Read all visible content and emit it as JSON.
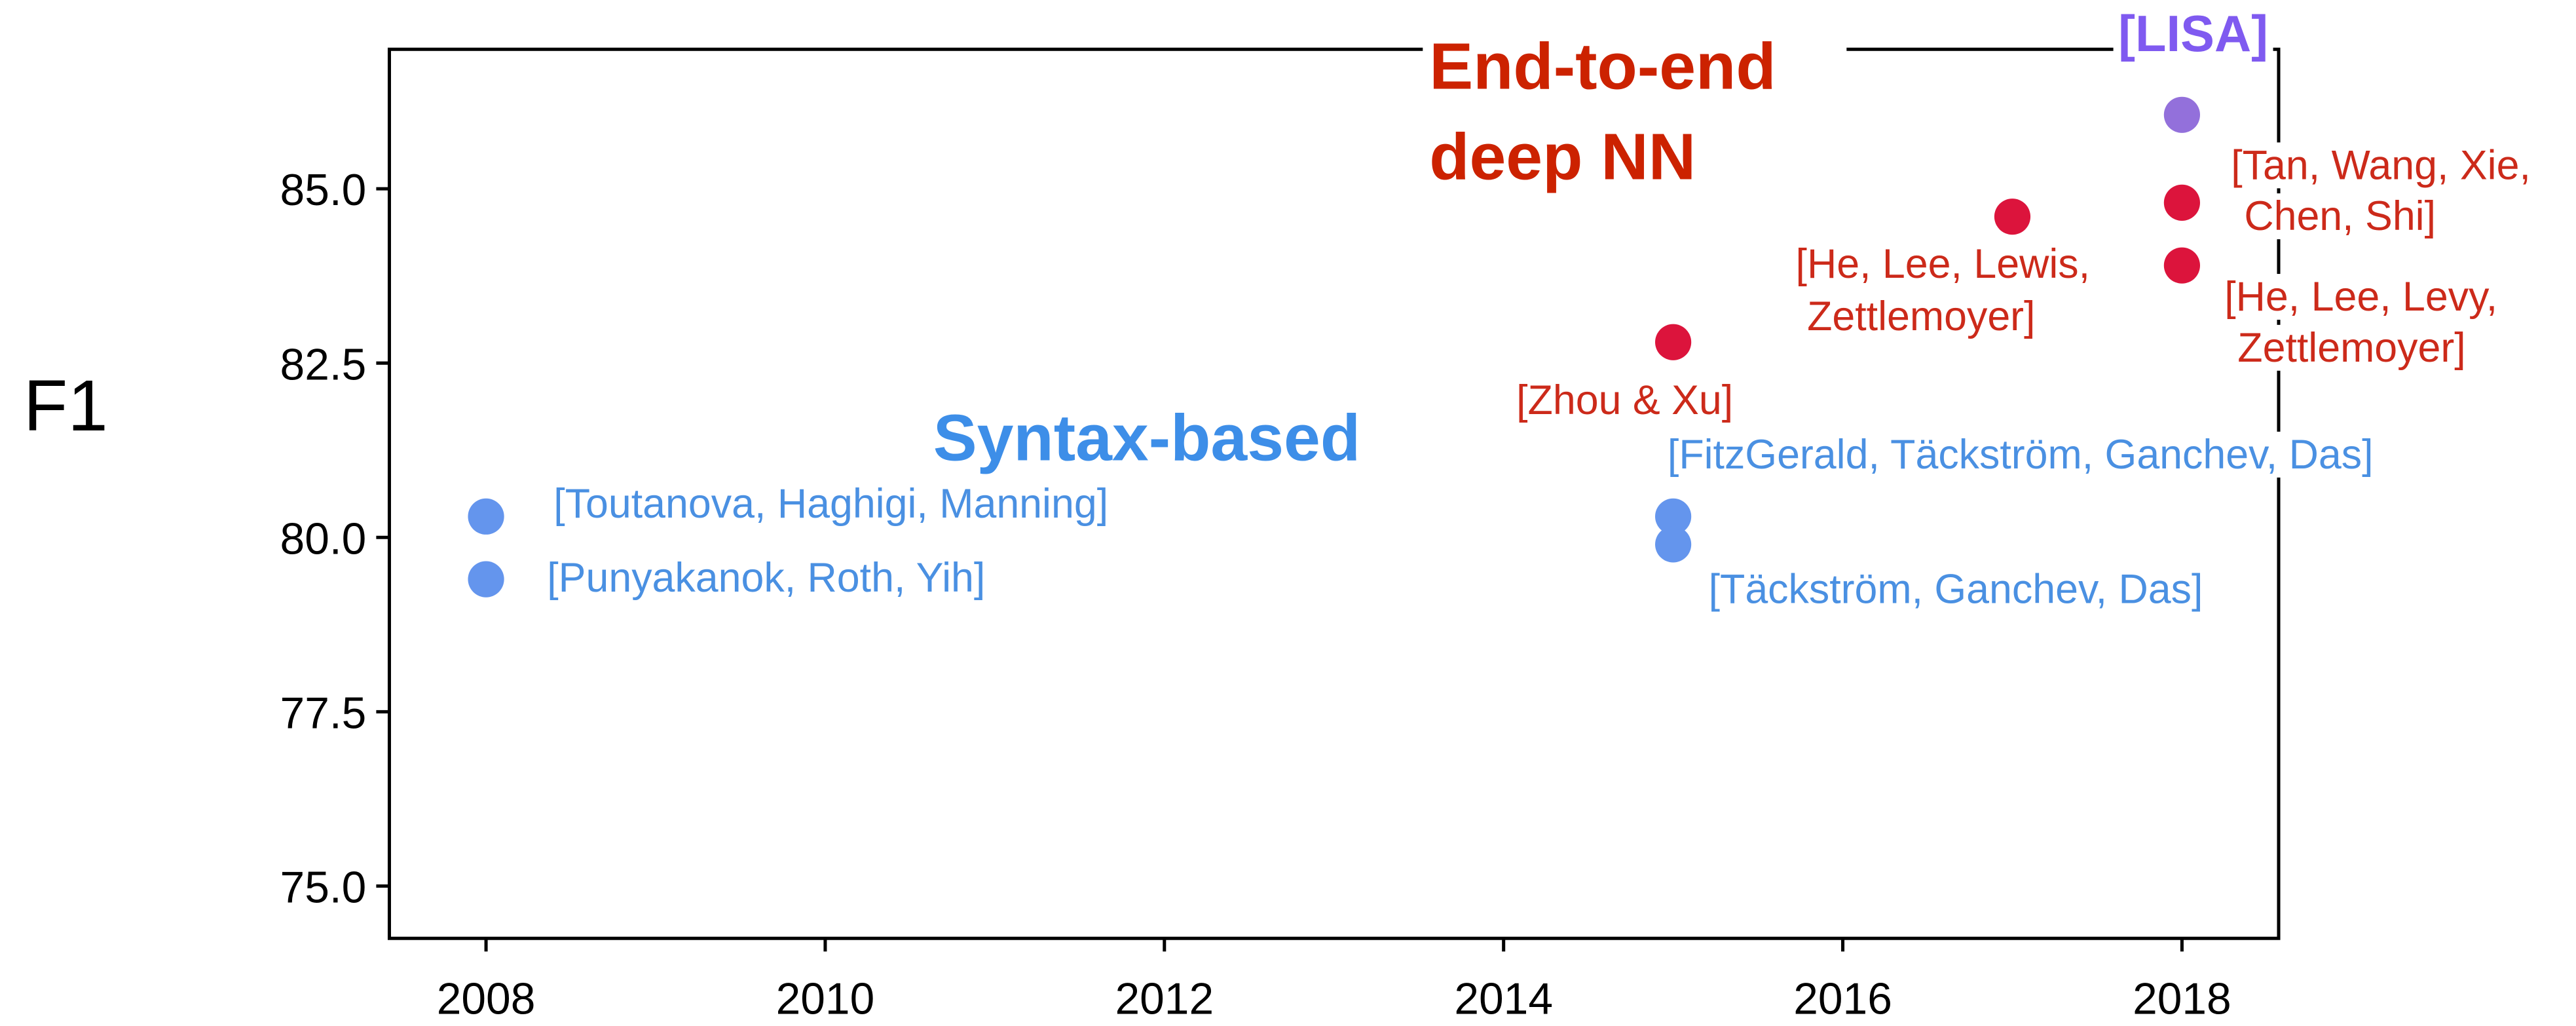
{
  "chart_data": {
    "type": "scatter",
    "ylabel": "F1",
    "xlim": [
      2007.43,
      2018.57
    ],
    "ylim": [
      74.25,
      87.0
    ],
    "xticks": [
      2008,
      2010,
      2012,
      2014,
      2016,
      2018
    ],
    "yticks": [
      {
        "value": 75.0,
        "label": "75.0"
      },
      {
        "value": 77.5,
        "label": "77.5"
      },
      {
        "value": 80.0,
        "label": "80.0"
      },
      {
        "value": 82.5,
        "label": "82.5"
      },
      {
        "value": 85.0,
        "label": "85.0"
      }
    ],
    "grid": false,
    "series": [
      {
        "name": "Syntax-based",
        "color": "#6495ed",
        "label_color": "#4a90e2",
        "name_color": "#3d8ee8",
        "x": [
          2008,
          2008,
          2015,
          2015
        ],
        "values": [
          80.3,
          79.4,
          80.3,
          79.9
        ],
        "labels": [
          [
            "[Toutanova, Haghigi, Manning]"
          ],
          [
            "[Punyakanok, Roth, Yih]"
          ],
          [
            "[FitzGerald, Täckström, Ganchev, Das]"
          ],
          [
            "[Täckström, Ganchev, Das]"
          ]
        ]
      },
      {
        "name": "End-to-end deep NN",
        "color": "#dc143c",
        "label_color": "#cc2a1a",
        "name_color": "#cc2200",
        "x": [
          2015,
          2017,
          2018,
          2018
        ],
        "values": [
          82.8,
          84.6,
          84.8,
          83.9
        ],
        "labels": [
          [
            "[Zhou & Xu]"
          ],
          [
            "[He, Lee, Lewis,",
            "Zettlemoyer]"
          ],
          [
            "[Tan, Wang, Xie,",
            "Chen, Shi]"
          ],
          [
            "[He, Lee, Levy,",
            "Zettlemoyer]"
          ]
        ]
      },
      {
        "name": "[LISA]",
        "color": "#9370db",
        "label_color": "#7f5af0",
        "name_color": "#7f5af0",
        "x": [
          2018
        ],
        "values": [
          86.06
        ]
      }
    ]
  }
}
